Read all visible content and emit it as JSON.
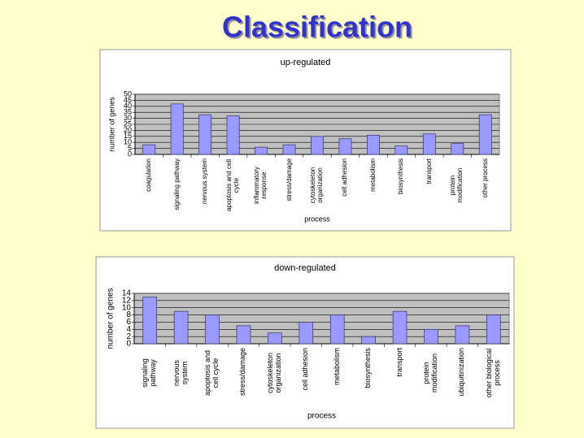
{
  "title": "Classification",
  "chart_data": [
    {
      "type": "bar",
      "title": "up-regulated",
      "ylabel": "number of genes",
      "xlabel": "process",
      "categories": [
        "coagulation",
        "signaling pathway",
        "nervous system",
        "apoptosis and cell cycle",
        "inflammatory response",
        "stress/damage",
        "cytoskeleton organization",
        "cell adhesion",
        "metabolism",
        "biosynthesis",
        "transport",
        "protein modification",
        "other process"
      ],
      "values": [
        8,
        42,
        33,
        32,
        6,
        8,
        15,
        13,
        16,
        7,
        17,
        9,
        33
      ],
      "color": "#9999ff",
      "ylim": [
        0,
        50
      ],
      "yticks": [
        0,
        5,
        10,
        15,
        20,
        25,
        30,
        35,
        40,
        45,
        50
      ],
      "grid": true
    },
    {
      "type": "bar",
      "title": "down-regulated",
      "ylabel": "number of genes",
      "xlabel": "process",
      "categories": [
        "signaling pathway",
        "nervous system",
        "apoptosis and cell cycle",
        "stress/damage",
        "cytoskeleton organization",
        "cell adhesion",
        "metabolism",
        "biosynthesis",
        "transport",
        "protein modification",
        "ubiquitinization",
        "other biological process"
      ],
      "values": [
        13,
        9,
        8,
        5,
        3,
        6,
        8,
        2,
        9,
        4,
        5,
        8
      ],
      "color": "#9999ff",
      "ylim": [
        0,
        14
      ],
      "yticks": [
        0,
        2,
        4,
        6,
        8,
        10,
        12,
        14
      ],
      "grid": true
    }
  ]
}
